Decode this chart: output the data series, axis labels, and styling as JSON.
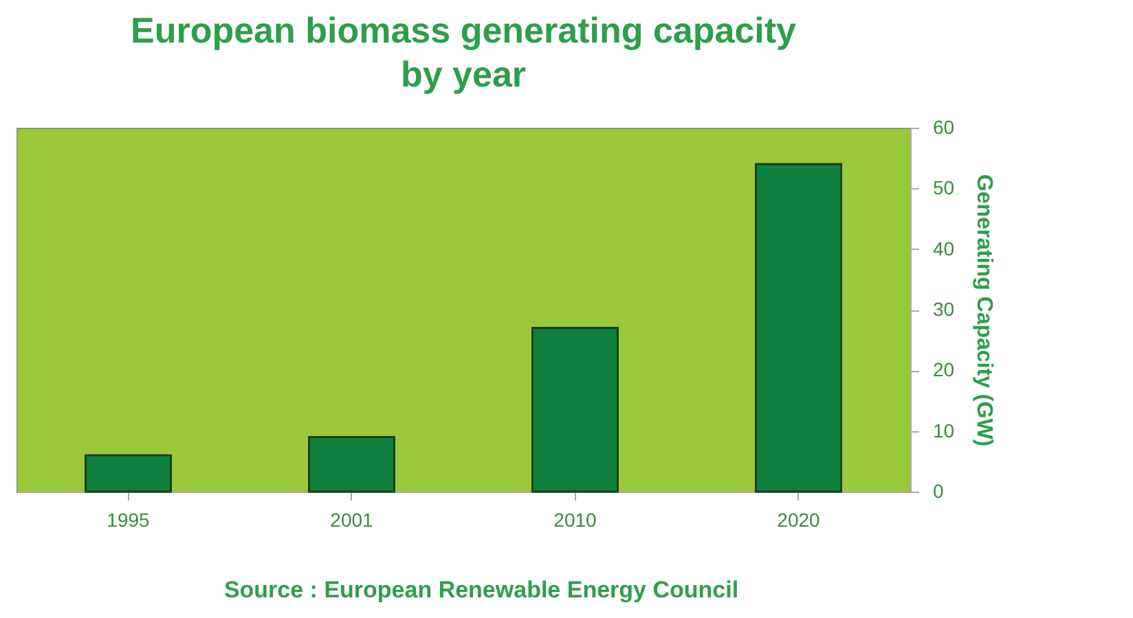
{
  "chart_data": {
    "type": "bar",
    "title": "European biomass generating capacity by year",
    "ylabel": "Generating Capacity (GW)",
    "categories": [
      "1995",
      "2001",
      "2010",
      "2020"
    ],
    "values": [
      6,
      9,
      27,
      54
    ],
    "color": "#0e7f3c",
    "ylim": [
      0,
      60
    ],
    "yticks": [
      0,
      10,
      20,
      30,
      40,
      50,
      60
    ],
    "grid": false,
    "annotations": [
      "Source : European Renewable Energy Council"
    ]
  }
}
